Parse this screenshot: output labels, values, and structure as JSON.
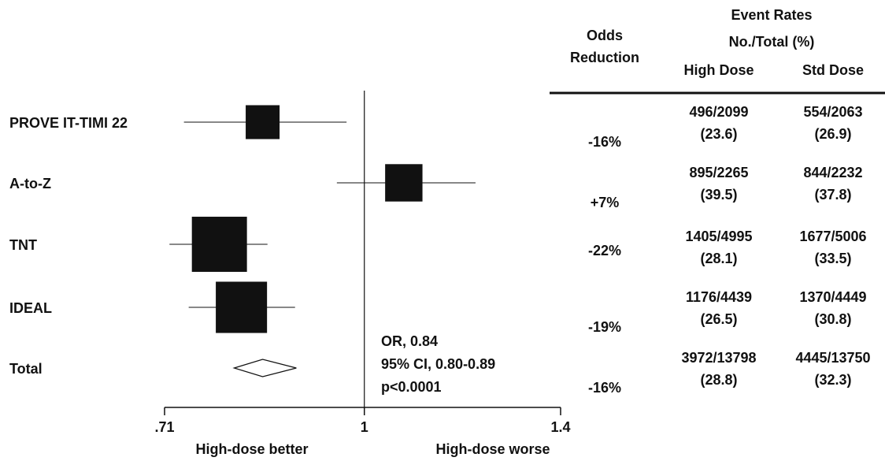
{
  "chart_data": {
    "type": "forest",
    "xscale": "log",
    "xlim": [
      0.71,
      1.4
    ],
    "xticks": [
      {
        "value": 0.71,
        "label": ".71"
      },
      1,
      1.4
    ],
    "xlabel_left": "High-dose better",
    "xlabel_right": "High-dose worse",
    "reference": 1,
    "color": "#111111",
    "headers": {
      "odds_reduction": [
        "Odds",
        "Reduction"
      ],
      "event_rates": [
        "Event Rates",
        "No./Total (%)"
      ],
      "high_dose": "High Dose",
      "std_dose": "Std Dose"
    },
    "rows": [
      {
        "name": "PROVE IT-TIMI 22",
        "estimate": 0.84,
        "lower": 0.734,
        "upper": 0.97,
        "weight": 14,
        "odds_reduction": "-16%",
        "high_dose": [
          "496/2099",
          "(23.6)"
        ],
        "std_dose": [
          "554/2063",
          "(26.9)"
        ]
      },
      {
        "name": "A-to-Z",
        "estimate": 1.07,
        "lower": 0.954,
        "upper": 1.21,
        "weight": 17,
        "odds_reduction": "+7%",
        "high_dose": [
          "895/2265",
          "(39.5)"
        ],
        "std_dose": [
          "844/2232",
          "(37.8)"
        ]
      },
      {
        "name": "TNT",
        "estimate": 0.78,
        "lower": 0.716,
        "upper": 0.847,
        "weight": 37,
        "odds_reduction": "-22%",
        "high_dose": [
          "1405/4995",
          "(28.1)"
        ],
        "std_dose": [
          "1677/5006",
          "(33.5)"
        ]
      },
      {
        "name": "IDEAL",
        "estimate": 0.81,
        "lower": 0.74,
        "upper": 0.888,
        "weight": 32,
        "odds_reduction": "-19%",
        "high_dose": [
          "1176/4439",
          "(26.5)"
        ],
        "std_dose": [
          "1370/4449",
          "(30.8)"
        ]
      },
      {
        "name": "Total",
        "estimate": 0.84,
        "lower": 0.8,
        "upper": 0.89,
        "odds_reduction": "-16%",
        "high_dose": [
          "3972/13798",
          "(28.8)"
        ],
        "std_dose": [
          "4445/13750",
          "(32.3)"
        ],
        "annotation": [
          "OR, 0.84",
          "95% CI, 0.80-0.89",
          "p<0.0001"
        ]
      }
    ]
  }
}
